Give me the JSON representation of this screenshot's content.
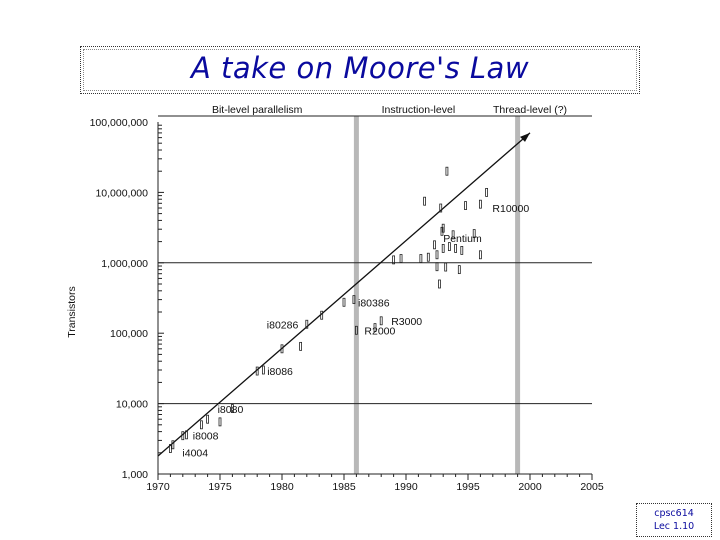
{
  "slide": {
    "title": "A take on Moore's Law",
    "footer_line1": "cpsc614",
    "footer_line2": "Lec 1.10"
  },
  "chart_data": {
    "type": "scatter",
    "title": "",
    "xlabel": "",
    "ylabel": "Transistors",
    "x_scale": "linear",
    "y_scale": "log",
    "xlim": [
      1970,
      2005
    ],
    "ylim": [
      1000,
      100000000
    ],
    "x_ticks": [
      1970,
      1975,
      1980,
      1985,
      1990,
      1995,
      2000,
      2005
    ],
    "x_tick_labels": [
      "1970",
      "1975",
      "1980",
      "1985",
      "1990",
      "1995",
      "2000",
      "2005"
    ],
    "y_ticks": [
      1000,
      10000,
      100000,
      1000000,
      10000000,
      100000000
    ],
    "y_tick_labels": [
      "1,000",
      "10,000",
      "100,000",
      "1,000,000",
      "10,000,000",
      "100,000,000"
    ],
    "gridlines_y": [
      10000,
      1000000
    ],
    "era_dividers": [
      1986,
      1999
    ],
    "eras": [
      {
        "label": "Bit-level parallelism",
        "x": 1978
      },
      {
        "label": "Instruction-level",
        "x": 1991
      },
      {
        "label": "Thread-level (?)",
        "x": 2000
      }
    ],
    "trend_line": {
      "from": [
        1970,
        1800
      ],
      "to": [
        2000,
        70000000
      ],
      "arrow": true
    },
    "labeled_points": [
      {
        "name": "i4004",
        "x": 1971,
        "y": 2300
      },
      {
        "name": "i8008",
        "x": 1972,
        "y": 3500
      },
      {
        "name": "i8080",
        "x": 1974,
        "y": 6000
      },
      {
        "name": "i8086",
        "x": 1978,
        "y": 29000
      },
      {
        "name": "i80286",
        "x": 1982,
        "y": 134000
      },
      {
        "name": "i80386",
        "x": 1985,
        "y": 275000
      },
      {
        "name": "R2000",
        "x": 1986,
        "y": 110000
      },
      {
        "name": "R3000",
        "x": 1988,
        "y": 150000
      },
      {
        "name": "Pentium",
        "x": 1993,
        "y": 3100000
      },
      {
        "name": "R10000",
        "x": 1996,
        "y": 6800000
      }
    ],
    "unlabeled_points": [
      {
        "x": 1971.2,
        "y": 2600
      },
      {
        "x": 1972.3,
        "y": 3600
      },
      {
        "x": 1973.5,
        "y": 5000
      },
      {
        "x": 1975,
        "y": 5500
      },
      {
        "x": 1976,
        "y": 8500
      },
      {
        "x": 1978.5,
        "y": 30000
      },
      {
        "x": 1980,
        "y": 60000
      },
      {
        "x": 1981.5,
        "y": 65000
      },
      {
        "x": 1983.2,
        "y": 180000
      },
      {
        "x": 1985.8,
        "y": 300000
      },
      {
        "x": 1987.5,
        "y": 120000
      },
      {
        "x": 1989,
        "y": 1100000
      },
      {
        "x": 1989.6,
        "y": 1150000
      },
      {
        "x": 1991.2,
        "y": 1150000
      },
      {
        "x": 1991.8,
        "y": 1200000
      },
      {
        "x": 1992.5,
        "y": 1300000
      },
      {
        "x": 1993,
        "y": 1600000
      },
      {
        "x": 1993.5,
        "y": 1700000
      },
      {
        "x": 1994,
        "y": 1600000
      },
      {
        "x": 1994.5,
        "y": 1500000
      },
      {
        "x": 1992.3,
        "y": 1800000
      },
      {
        "x": 1993.8,
        "y": 2500000
      },
      {
        "x": 1995.5,
        "y": 2600000
      },
      {
        "x": 1996,
        "y": 1300000
      },
      {
        "x": 1991.5,
        "y": 7500000
      },
      {
        "x": 1992.8,
        "y": 6000000
      },
      {
        "x": 1994.8,
        "y": 6500000
      },
      {
        "x": 1996.5,
        "y": 10000000
      },
      {
        "x": 1993.3,
        "y": 20000000
      },
      {
        "x": 1992.5,
        "y": 880000
      },
      {
        "x": 1993.2,
        "y": 870000
      },
      {
        "x": 1994.3,
        "y": 800000
      },
      {
        "x": 1992.7,
        "y": 500000
      },
      {
        "x": 1992.9,
        "y": 2800000
      }
    ],
    "grid": false,
    "legend": "none"
  }
}
